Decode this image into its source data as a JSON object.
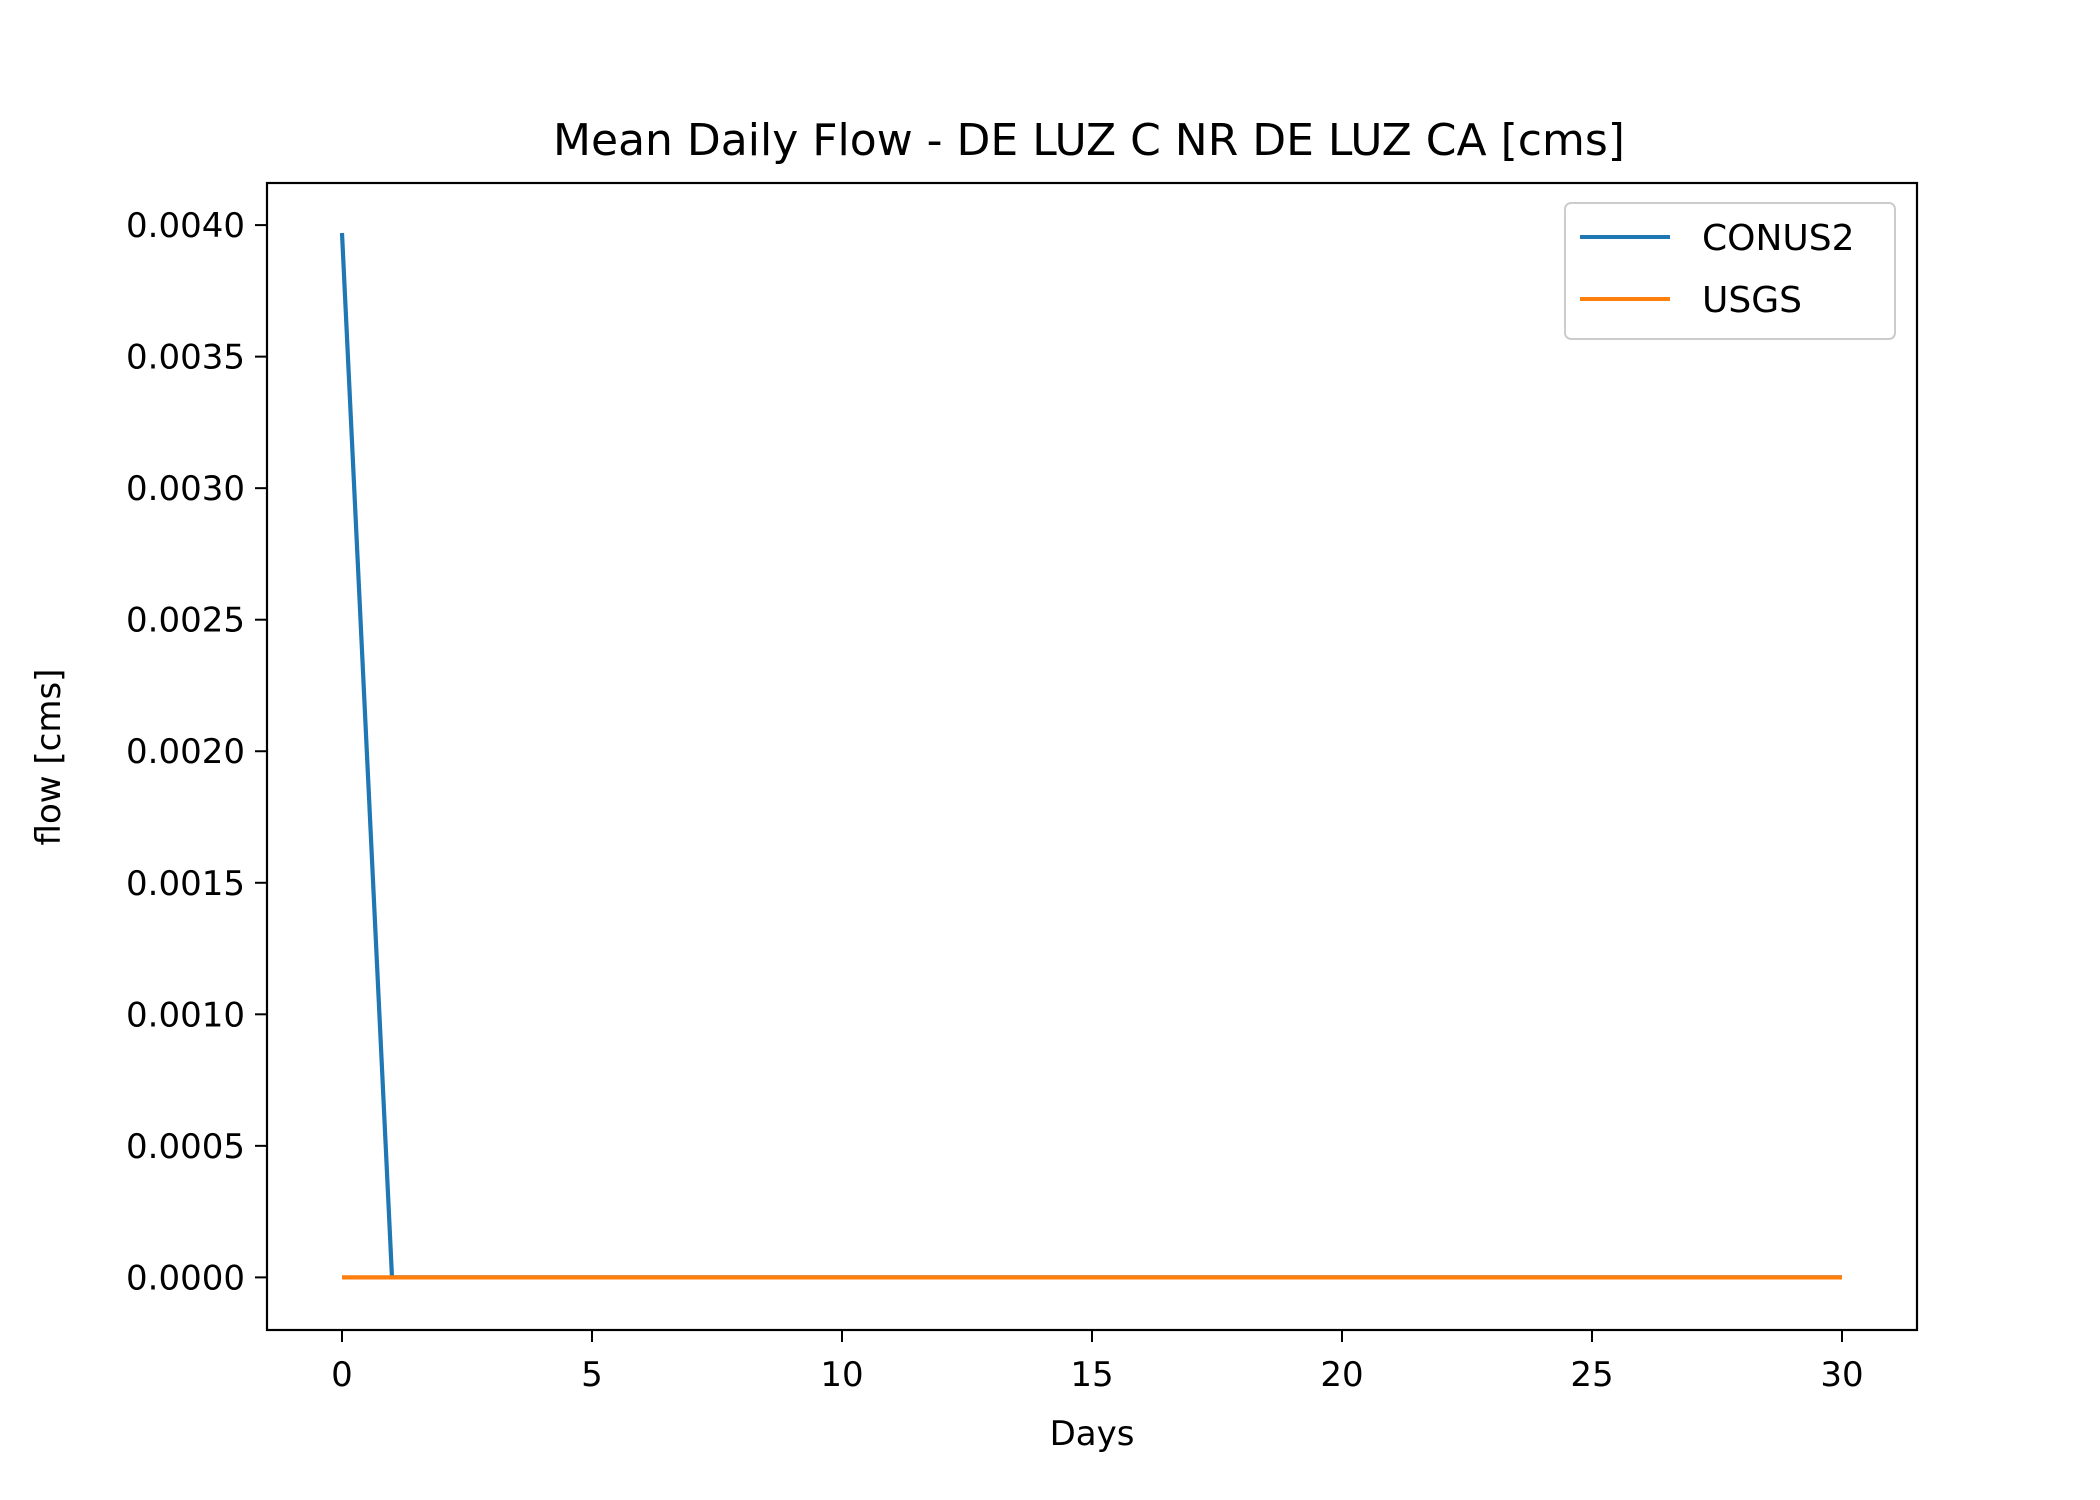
{
  "chart_data": {
    "type": "line",
    "title": "Mean Daily Flow - DE LUZ C NR DE LUZ CA [cms]",
    "xlabel": "Days",
    "ylabel": "flow [cms]",
    "xlim": [
      -1.5,
      31.5
    ],
    "ylim": [
      -0.0002,
      0.00416
    ],
    "xticks": [
      0,
      5,
      10,
      15,
      20,
      25,
      30
    ],
    "xtick_labels": [
      "0",
      "5",
      "10",
      "15",
      "20",
      "25",
      "30"
    ],
    "yticks": [
      0,
      0.0005,
      0.001,
      0.0015,
      0.002,
      0.0025,
      0.003,
      0.0035,
      0.004
    ],
    "ytick_labels": [
      "0.0000",
      "0.0005",
      "0.0010",
      "0.0015",
      "0.0020",
      "0.0025",
      "0.0030",
      "0.0035",
      "0.0040"
    ],
    "grid": false,
    "legend_position": "top-right",
    "series": [
      {
        "name": "CONUS2",
        "color": "#1f77b4",
        "x": [
          0,
          1,
          2,
          3,
          4,
          5,
          6,
          7,
          8,
          9,
          10,
          11,
          12,
          13,
          14,
          15,
          16,
          17,
          18,
          19,
          20,
          21,
          22,
          23,
          24,
          25,
          26,
          27,
          28,
          29,
          30
        ],
        "y": [
          0.00397,
          0,
          0,
          0,
          0,
          0,
          0,
          0,
          0,
          0,
          0,
          0,
          0,
          0,
          0,
          0,
          0,
          0,
          0,
          0,
          0,
          0,
          0,
          0,
          0,
          0,
          0,
          0,
          0,
          0,
          0
        ]
      },
      {
        "name": "USGS",
        "color": "#ff7f0e",
        "x": [
          0,
          1,
          2,
          3,
          4,
          5,
          6,
          7,
          8,
          9,
          10,
          11,
          12,
          13,
          14,
          15,
          16,
          17,
          18,
          19,
          20,
          21,
          22,
          23,
          24,
          25,
          26,
          27,
          28,
          29,
          30
        ],
        "y": [
          0,
          0,
          0,
          0,
          0,
          0,
          0,
          0,
          0,
          0,
          0,
          0,
          0,
          0,
          0,
          0,
          0,
          0,
          0,
          0,
          0,
          0,
          0,
          0,
          0,
          0,
          0,
          0,
          0,
          0,
          0
        ]
      }
    ]
  }
}
